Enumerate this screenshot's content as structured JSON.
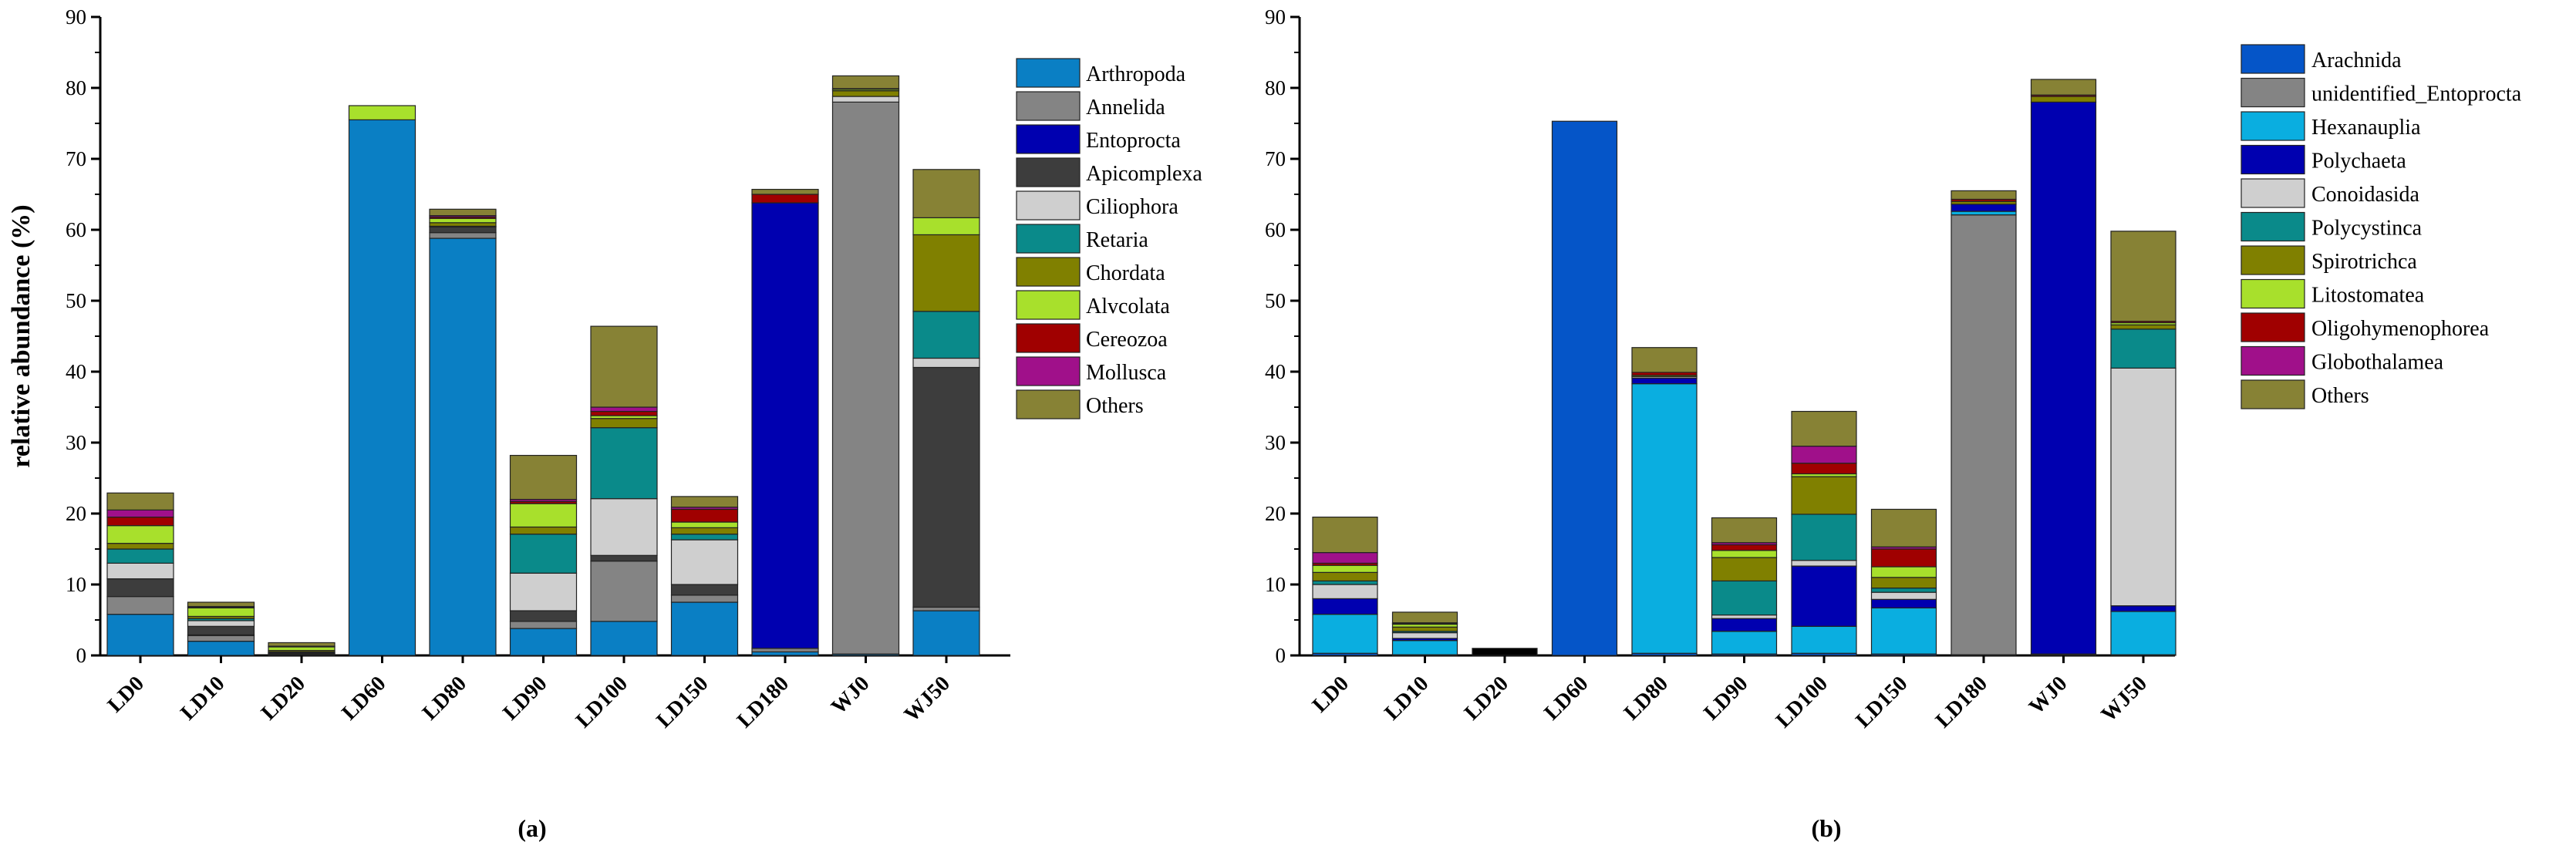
{
  "chart_data": [
    {
      "type": "bar",
      "stacked": true,
      "panel_label": "(a)",
      "ylabel": "relative abundance (%)",
      "xlabel": "",
      "ylim": [
        0,
        90
      ],
      "yticks": [
        0,
        10,
        20,
        30,
        40,
        50,
        60,
        70,
        80,
        90
      ],
      "categories": [
        "LD0",
        "LD10",
        "LD20",
        "LD60",
        "LD80",
        "LD90",
        "LD100",
        "LD150",
        "LD180",
        "WJ0",
        "WJ50"
      ],
      "legend_position": "right",
      "series": [
        {
          "name": "Arthropoda",
          "color": "#0a7fc4",
          "values": [
            5.8,
            2.0,
            0.1,
            75.5,
            58.8,
            3.8,
            4.8,
            7.5,
            0.5,
            0.2,
            6.3
          ]
        },
        {
          "name": "Annelida",
          "color": "#848484",
          "values": [
            2.5,
            0.8,
            0.1,
            0.0,
            0.8,
            1.0,
            8.5,
            1.0,
            0.5,
            77.8,
            0.5
          ]
        },
        {
          "name": "Entoprocta",
          "color": "#0000b0",
          "values": [
            0.0,
            0.1,
            0.0,
            0.0,
            0.0,
            0.0,
            0.0,
            0.0,
            62.8,
            0.0,
            0.0
          ]
        },
        {
          "name": "Apicomplexa",
          "color": "#3d3d3d",
          "values": [
            2.5,
            1.2,
            0.1,
            0.0,
            0.8,
            1.5,
            0.8,
            1.5,
            0.0,
            0.0,
            33.8
          ]
        },
        {
          "name": "Ciliophora",
          "color": "#cfcfcf",
          "values": [
            2.2,
            0.8,
            0.1,
            0.0,
            0.1,
            5.3,
            8.0,
            6.3,
            0.0,
            0.8,
            1.3
          ]
        },
        {
          "name": "Retaria",
          "color": "#0a8a8a",
          "values": [
            2.0,
            0.3,
            0.1,
            0.0,
            0.0,
            5.5,
            10.0,
            0.8,
            0.0,
            0.0,
            6.6
          ]
        },
        {
          "name": "Chordata",
          "color": "#808000",
          "values": [
            0.8,
            0.3,
            0.2,
            0.0,
            0.5,
            1.0,
            1.3,
            0.9,
            0.0,
            0.8,
            10.8
          ]
        },
        {
          "name": "Alvcolata",
          "color": "#a8e02c",
          "values": [
            2.5,
            1.2,
            0.5,
            2.0,
            0.6,
            3.3,
            0.4,
            0.8,
            0.0,
            0.2,
            2.4
          ]
        },
        {
          "name": "Cereozoa",
          "color": "#a00000",
          "values": [
            1.2,
            0.1,
            0.0,
            0.0,
            0.2,
            0.3,
            0.6,
            1.8,
            1.2,
            0.1,
            0.0
          ]
        },
        {
          "name": "Mollusca",
          "color": "#a0108a",
          "values": [
            1.0,
            0.1,
            0.1,
            0.0,
            0.2,
            0.3,
            0.6,
            0.3,
            0.0,
            0.0,
            0.0
          ]
        },
        {
          "name": "Others",
          "color": "#878235",
          "values": [
            2.4,
            0.6,
            0.5,
            0.0,
            0.9,
            6.2,
            11.4,
            1.5,
            0.7,
            1.8,
            6.8
          ]
        }
      ]
    },
    {
      "type": "bar",
      "stacked": true,
      "panel_label": "(b)",
      "ylabel": "",
      "xlabel": "",
      "ylim": [
        0,
        90
      ],
      "yticks": [
        0,
        10,
        20,
        30,
        40,
        50,
        60,
        70,
        80,
        90
      ],
      "categories": [
        "LD0",
        "LD10",
        "LD20",
        "LD60",
        "LD80",
        "LD90",
        "LD100",
        "LD150",
        "LD180",
        "WJ0",
        "WJ50"
      ],
      "legend_position": "right",
      "series": [
        {
          "name": "Arachnida",
          "color": "#0555c8",
          "values": [
            0.3,
            0.1,
            0.0,
            75.3,
            0.3,
            0.2,
            0.3,
            0.2,
            0.1,
            0.1,
            0.1
          ]
        },
        {
          "name": "unidentified_Entoprocta",
          "color": "#848484",
          "values": [
            0.0,
            0.0,
            0.0,
            0.0,
            0.0,
            0.0,
            0.0,
            0.0,
            62.0,
            0.0,
            0.0
          ]
        },
        {
          "name": "Hexanauplia",
          "color": "#0aaee0",
          "values": [
            5.5,
            2.0,
            0.0,
            0.0,
            38.0,
            3.2,
            3.8,
            6.5,
            0.5,
            0.1,
            6.1
          ]
        },
        {
          "name": "Polychaeta",
          "color": "#0000b0",
          "values": [
            2.2,
            0.3,
            0.0,
            0.0,
            0.8,
            1.8,
            8.5,
            1.2,
            1.0,
            77.8,
            0.8
          ]
        },
        {
          "name": "Conoidasida",
          "color": "#cfcfcf",
          "values": [
            2.0,
            0.8,
            0.0,
            0.0,
            0.2,
            0.5,
            0.8,
            1.0,
            0.0,
            0.0,
            33.5
          ]
        },
        {
          "name": "Polycystinca",
          "color": "#0a8a8a",
          "values": [
            0.5,
            0.2,
            0.0,
            0.0,
            0.0,
            4.8,
            6.5,
            0.6,
            0.0,
            0.0,
            5.5
          ]
        },
        {
          "name": "Spirotrichca",
          "color": "#808000",
          "values": [
            1.2,
            0.6,
            0.0,
            0.0,
            0.2,
            3.3,
            5.3,
            1.5,
            0.4,
            0.8,
            0.6
          ]
        },
        {
          "name": "Litostomatea",
          "color": "#a8e02c",
          "values": [
            1.0,
            0.4,
            0.0,
            0.0,
            0.0,
            1.0,
            0.4,
            1.5,
            0.0,
            0.0,
            0.3
          ]
        },
        {
          "name": "Oligohymenophorea",
          "color": "#a00000",
          "values": [
            0.3,
            0.1,
            0.0,
            0.0,
            0.4,
            0.8,
            1.5,
            2.5,
            0.3,
            0.2,
            0.2
          ]
        },
        {
          "name": "Globothalamea",
          "color": "#a0108a",
          "values": [
            1.5,
            0.1,
            0.0,
            0.0,
            0.0,
            0.3,
            2.4,
            0.3,
            0.0,
            0.0,
            0.0
          ]
        },
        {
          "name": "Others",
          "color": "#878235",
          "values": [
            5.0,
            1.5,
            0.0,
            0.0,
            3.5,
            3.5,
            4.9,
            5.3,
            1.2,
            2.2,
            12.7
          ]
        },
        {
          "name": "",
          "color": "#000000",
          "values": [
            0.0,
            0.0,
            1.0,
            0.0,
            0.0,
            0.0,
            0.0,
            0.0,
            0.0,
            0.0,
            0.0
          ]
        }
      ]
    }
  ]
}
